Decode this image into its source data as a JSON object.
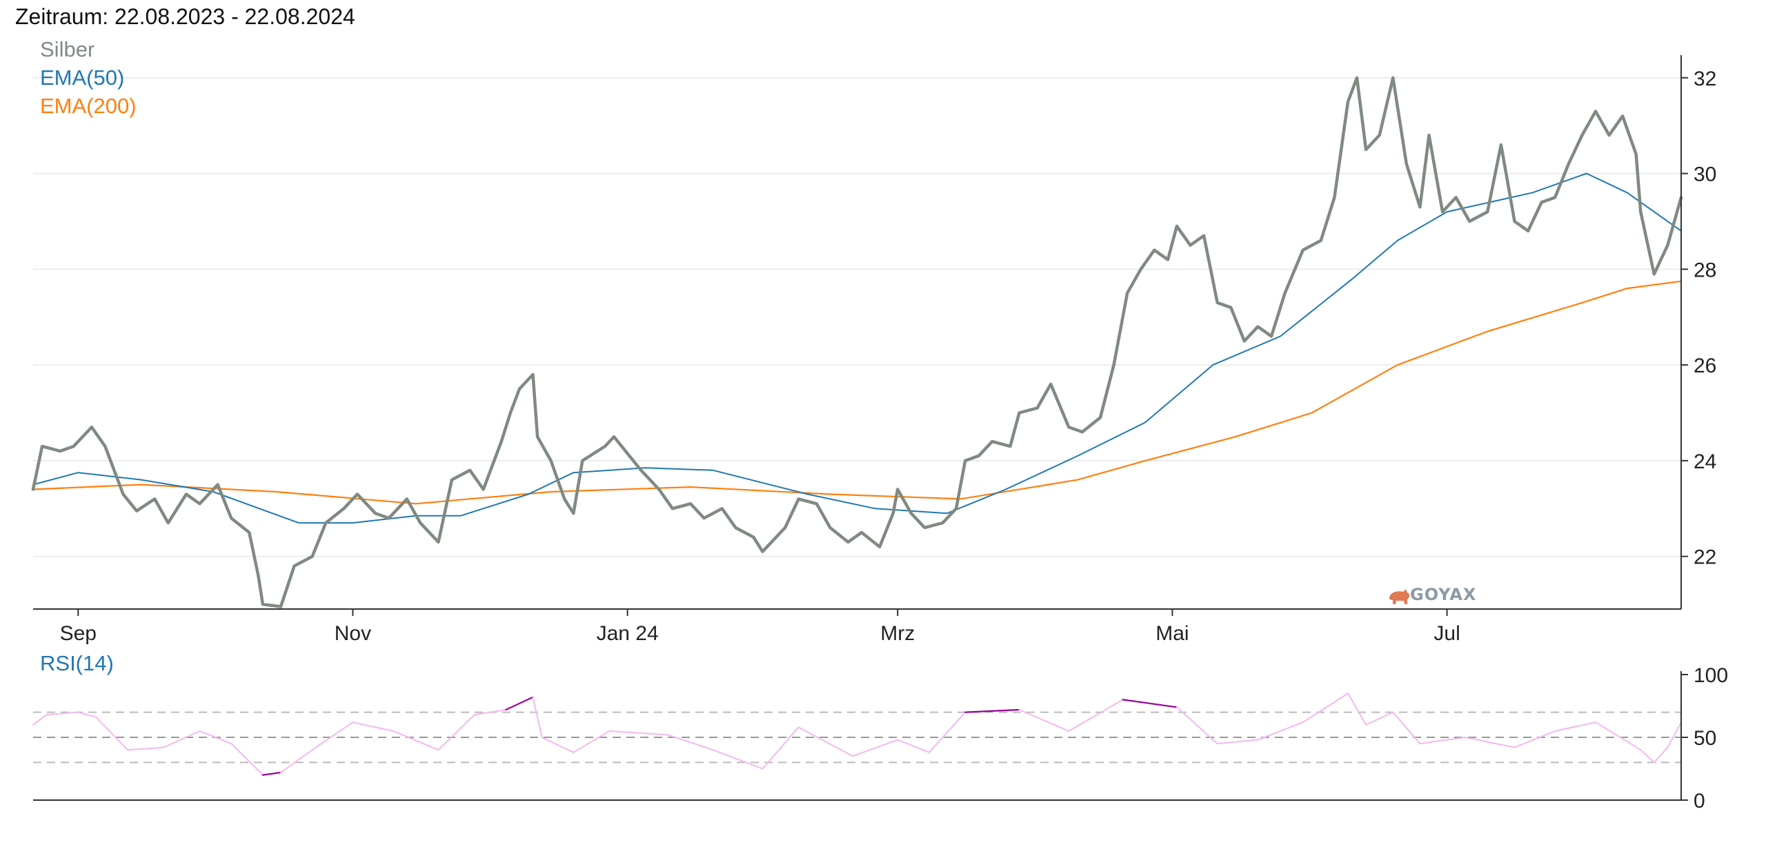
{
  "header": {
    "period": "Zeitraum: 22.08.2023 - 22.08.2024"
  },
  "logo": {
    "text": "GOYAX",
    "color": "#e07a55"
  },
  "colors": {
    "price": "#7f8a80",
    "ema50": "#1f77b4",
    "ema200": "#ff7f0e",
    "rsi": "#f4b8f0",
    "rsi_extreme": "#990099",
    "grid": "#e6e6e6",
    "axis": "#333333"
  },
  "chart_data": [
    {
      "type": "line",
      "title": "",
      "x_ticks": [
        {
          "date": "2023-09-01",
          "label": "Sep"
        },
        {
          "date": "2023-11-01",
          "label": "Nov"
        },
        {
          "date": "2024-01-01",
          "label": "Jan 24"
        },
        {
          "date": "2024-03-01",
          "label": "Mrz"
        },
        {
          "date": "2024-05-01",
          "label": "Mai"
        },
        {
          "date": "2024-07-01",
          "label": "Jul"
        }
      ],
      "xlim": [
        "2023-08-22",
        "2024-08-22"
      ],
      "ylim": [
        20.9,
        32.4
      ],
      "y_ticks": [
        22,
        24,
        26,
        28,
        30,
        32
      ],
      "y_axis_side": "right",
      "grid": true,
      "legend_position": "top-left",
      "series": [
        {
          "name": "Silber",
          "key": "price",
          "points": [
            [
              "2023-08-22",
              23.4
            ],
            [
              "2023-08-24",
              24.3
            ],
            [
              "2023-08-28",
              24.2
            ],
            [
              "2023-08-31",
              24.3
            ],
            [
              "2023-09-04",
              24.7
            ],
            [
              "2023-09-07",
              24.3
            ],
            [
              "2023-09-11",
              23.3
            ],
            [
              "2023-09-14",
              22.95
            ],
            [
              "2023-09-18",
              23.2
            ],
            [
              "2023-09-21",
              22.7
            ],
            [
              "2023-09-25",
              23.3
            ],
            [
              "2023-09-28",
              23.1
            ],
            [
              "2023-10-02",
              23.5
            ],
            [
              "2023-10-05",
              22.8
            ],
            [
              "2023-10-09",
              22.5
            ],
            [
              "2023-10-11",
              21.6
            ],
            [
              "2023-10-12",
              21.0
            ],
            [
              "2023-10-16",
              20.95
            ],
            [
              "2023-10-19",
              21.8
            ],
            [
              "2023-10-23",
              22.0
            ],
            [
              "2023-10-26",
              22.7
            ],
            [
              "2023-10-30",
              23.0
            ],
            [
              "2023-11-02",
              23.3
            ],
            [
              "2023-11-06",
              22.9
            ],
            [
              "2023-11-09",
              22.8
            ],
            [
              "2023-11-13",
              23.2
            ],
            [
              "2023-11-16",
              22.7
            ],
            [
              "2023-11-20",
              22.3
            ],
            [
              "2023-11-23",
              23.6
            ],
            [
              "2023-11-27",
              23.8
            ],
            [
              "2023-11-30",
              23.4
            ],
            [
              "2023-12-04",
              24.4
            ],
            [
              "2023-12-06",
              25.0
            ],
            [
              "2023-12-08",
              25.5
            ],
            [
              "2023-12-11",
              25.8
            ],
            [
              "2023-12-12",
              24.5
            ],
            [
              "2023-12-15",
              24.0
            ],
            [
              "2023-12-18",
              23.2
            ],
            [
              "2023-12-20",
              22.9
            ],
            [
              "2023-12-22",
              24.0
            ],
            [
              "2023-12-27",
              24.3
            ],
            [
              "2023-12-29",
              24.5
            ],
            [
              "2024-01-04",
              23.8
            ],
            [
              "2024-01-08",
              23.4
            ],
            [
              "2024-01-11",
              23.0
            ],
            [
              "2024-01-15",
              23.1
            ],
            [
              "2024-01-18",
              22.8
            ],
            [
              "2024-01-22",
              23.0
            ],
            [
              "2024-01-25",
              22.6
            ],
            [
              "2024-01-29",
              22.4
            ],
            [
              "2024-01-31",
              22.1
            ],
            [
              "2024-02-05",
              22.6
            ],
            [
              "2024-02-08",
              23.2
            ],
            [
              "2024-02-12",
              23.1
            ],
            [
              "2024-02-15",
              22.6
            ],
            [
              "2024-02-19",
              22.3
            ],
            [
              "2024-02-22",
              22.5
            ],
            [
              "2024-02-26",
              22.2
            ],
            [
              "2024-02-29",
              22.9
            ],
            [
              "2024-03-01",
              23.4
            ],
            [
              "2024-03-04",
              22.9
            ],
            [
              "2024-03-07",
              22.6
            ],
            [
              "2024-03-11",
              22.7
            ],
            [
              "2024-03-14",
              23.0
            ],
            [
              "2024-03-16",
              24.0
            ],
            [
              "2024-03-19",
              24.1
            ],
            [
              "2024-03-22",
              24.4
            ],
            [
              "2024-03-26",
              24.3
            ],
            [
              "2024-03-28",
              25.0
            ],
            [
              "2024-04-01",
              25.1
            ],
            [
              "2024-04-04",
              25.6
            ],
            [
              "2024-04-08",
              24.7
            ],
            [
              "2024-04-11",
              24.6
            ],
            [
              "2024-04-15",
              24.9
            ],
            [
              "2024-04-18",
              26.0
            ],
            [
              "2024-04-21",
              27.5
            ],
            [
              "2024-04-24",
              28.0
            ],
            [
              "2024-04-27",
              28.4
            ],
            [
              "2024-04-30",
              28.2
            ],
            [
              "2024-05-02",
              28.9
            ],
            [
              "2024-05-05",
              28.5
            ],
            [
              "2024-05-08",
              28.7
            ],
            [
              "2024-05-11",
              27.3
            ],
            [
              "2024-05-14",
              27.2
            ],
            [
              "2024-05-17",
              26.5
            ],
            [
              "2024-05-20",
              26.8
            ],
            [
              "2024-05-23",
              26.6
            ],
            [
              "2024-05-26",
              27.5
            ],
            [
              "2024-05-30",
              28.4
            ],
            [
              "2024-06-03",
              28.6
            ],
            [
              "2024-06-06",
              29.5
            ],
            [
              "2024-06-09",
              31.5
            ],
            [
              "2024-06-11",
              32.0
            ],
            [
              "2024-06-13",
              30.5
            ],
            [
              "2024-06-16",
              30.8
            ],
            [
              "2024-06-19",
              32.0
            ],
            [
              "2024-06-22",
              30.2
            ],
            [
              "2024-06-25",
              29.3
            ],
            [
              "2024-06-27",
              30.8
            ],
            [
              "2024-06-30",
              29.2
            ],
            [
              "2024-07-03",
              29.5
            ],
            [
              "2024-07-06",
              29.0
            ],
            [
              "2024-07-10",
              29.2
            ],
            [
              "2024-07-13",
              30.6
            ],
            [
              "2024-07-16",
              29.0
            ],
            [
              "2024-07-19",
              28.8
            ],
            [
              "2024-07-22",
              29.4
            ],
            [
              "2024-07-25",
              29.5
            ],
            [
              "2024-07-28",
              30.2
            ],
            [
              "2024-07-31",
              30.8
            ],
            [
              "2024-08-03",
              31.3
            ],
            [
              "2024-08-06",
              30.8
            ],
            [
              "2024-08-09",
              31.2
            ],
            [
              "2024-08-12",
              30.4
            ],
            [
              "2024-08-13",
              29.2
            ],
            [
              "2024-08-16",
              27.9
            ],
            [
              "2024-08-19",
              28.5
            ],
            [
              "2024-08-22",
              29.5
            ]
          ]
        },
        {
          "name": "EMA(50)",
          "key": "ema50",
          "points": [
            [
              "2023-08-22",
              23.5
            ],
            [
              "2023-09-01",
              23.75
            ],
            [
              "2023-09-15",
              23.6
            ],
            [
              "2023-10-01",
              23.35
            ],
            [
              "2023-10-20",
              22.7
            ],
            [
              "2023-11-01",
              22.7
            ],
            [
              "2023-11-15",
              22.85
            ],
            [
              "2023-11-25",
              22.85
            ],
            [
              "2023-12-10",
              23.3
            ],
            [
              "2023-12-20",
              23.75
            ],
            [
              "2024-01-05",
              23.85
            ],
            [
              "2024-01-20",
              23.8
            ],
            [
              "2024-02-10",
              23.3
            ],
            [
              "2024-02-25",
              23.0
            ],
            [
              "2024-03-12",
              22.9
            ],
            [
              "2024-03-25",
              23.4
            ],
            [
              "2024-04-10",
              24.1
            ],
            [
              "2024-04-25",
              24.8
            ],
            [
              "2024-05-10",
              26.0
            ],
            [
              "2024-05-25",
              26.6
            ],
            [
              "2024-06-10",
              27.8
            ],
            [
              "2024-06-20",
              28.6
            ],
            [
              "2024-07-01",
              29.2
            ],
            [
              "2024-07-20",
              29.6
            ],
            [
              "2024-08-01",
              30.0
            ],
            [
              "2024-08-10",
              29.6
            ],
            [
              "2024-08-22",
              28.8
            ]
          ]
        },
        {
          "name": "EMA(200)",
          "key": "ema200",
          "points": [
            [
              "2023-08-22",
              23.4
            ],
            [
              "2023-09-15",
              23.5
            ],
            [
              "2023-10-15",
              23.35
            ],
            [
              "2023-11-15",
              23.1
            ],
            [
              "2023-12-15",
              23.35
            ],
            [
              "2024-01-15",
              23.45
            ],
            [
              "2024-02-15",
              23.3
            ],
            [
              "2024-03-15",
              23.2
            ],
            [
              "2024-04-10",
              23.6
            ],
            [
              "2024-04-25",
              24.0
            ],
            [
              "2024-05-15",
              24.5
            ],
            [
              "2024-06-01",
              25.0
            ],
            [
              "2024-06-20",
              26.0
            ],
            [
              "2024-07-10",
              26.7
            ],
            [
              "2024-07-31",
              27.3
            ],
            [
              "2024-08-10",
              27.6
            ],
            [
              "2024-08-22",
              27.75
            ]
          ]
        }
      ]
    },
    {
      "type": "line",
      "title": "",
      "xlim": [
        "2023-08-22",
        "2024-08-22"
      ],
      "ylim": [
        0,
        100
      ],
      "y_ticks": [
        0,
        50,
        100
      ],
      "y_axis_side": "right",
      "reference_lines": [
        30,
        50,
        70
      ],
      "legend_position": "top-left",
      "series": [
        {
          "name": "RSI(14)",
          "key": "rsi",
          "points": [
            [
              "2023-08-22",
              60
            ],
            [
              "2023-08-25",
              68
            ],
            [
              "2023-09-01",
              70
            ],
            [
              "2023-09-05",
              66
            ],
            [
              "2023-09-12",
              40
            ],
            [
              "2023-09-20",
              42
            ],
            [
              "2023-09-28",
              55
            ],
            [
              "2023-10-05",
              45
            ],
            [
              "2023-10-12",
              20
            ],
            [
              "2023-10-16",
              22
            ],
            [
              "2023-10-23",
              40
            ],
            [
              "2023-11-01",
              62
            ],
            [
              "2023-11-10",
              55
            ],
            [
              "2023-11-20",
              40
            ],
            [
              "2023-11-28",
              68
            ],
            [
              "2023-12-05",
              72
            ],
            [
              "2023-12-11",
              82
            ],
            [
              "2023-12-13",
              50
            ],
            [
              "2023-12-20",
              38
            ],
            [
              "2023-12-28",
              55
            ],
            [
              "2024-01-10",
              52
            ],
            [
              "2024-01-20",
              40
            ],
            [
              "2024-01-31",
              25
            ],
            [
              "2024-02-08",
              58
            ],
            [
              "2024-02-20",
              35
            ],
            [
              "2024-03-01",
              48
            ],
            [
              "2024-03-08",
              38
            ],
            [
              "2024-03-16",
              70
            ],
            [
              "2024-03-28",
              72
            ],
            [
              "2024-04-08",
              55
            ],
            [
              "2024-04-20",
              80
            ],
            [
              "2024-05-02",
              74
            ],
            [
              "2024-05-11",
              45
            ],
            [
              "2024-05-20",
              48
            ],
            [
              "2024-05-30",
              62
            ],
            [
              "2024-06-09",
              85
            ],
            [
              "2024-06-13",
              60
            ],
            [
              "2024-06-19",
              70
            ],
            [
              "2024-06-25",
              45
            ],
            [
              "2024-07-05",
              50
            ],
            [
              "2024-07-16",
              42
            ],
            [
              "2024-07-25",
              55
            ],
            [
              "2024-08-03",
              62
            ],
            [
              "2024-08-13",
              40
            ],
            [
              "2024-08-16",
              30
            ],
            [
              "2024-08-19",
              42
            ],
            [
              "2024-08-22",
              62
            ]
          ]
        }
      ]
    }
  ]
}
